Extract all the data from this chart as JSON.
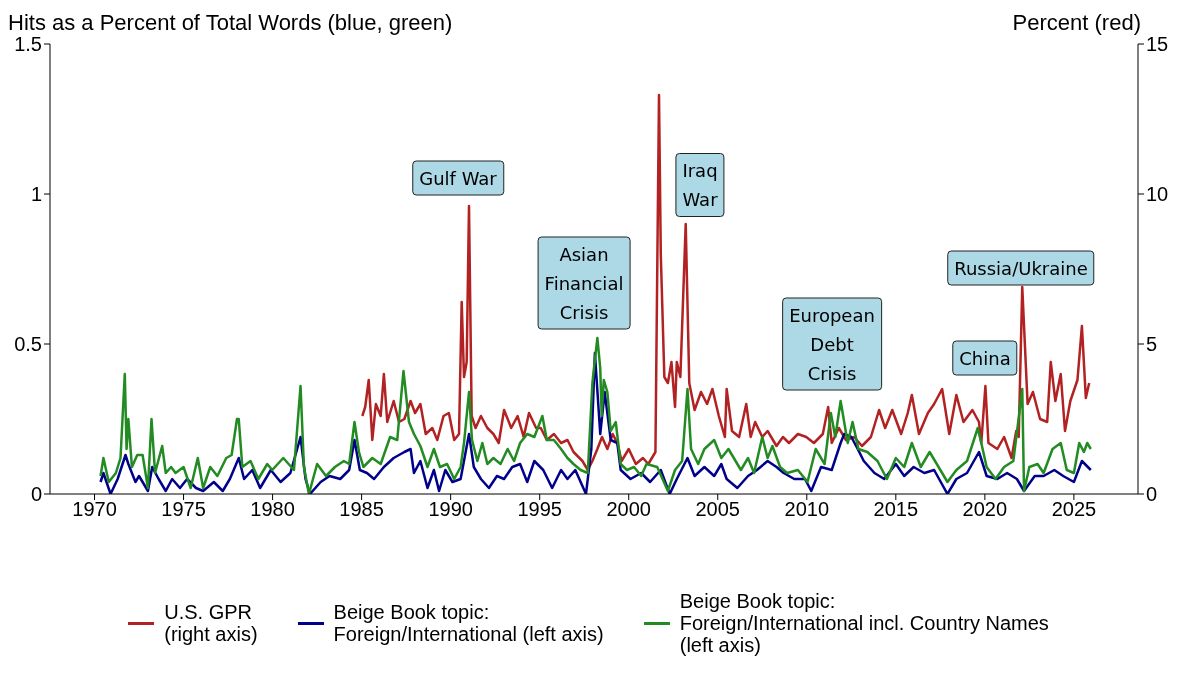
{
  "chart_data": {
    "type": "line",
    "ylabel": "Hits as a Percent of Total Words (blue, green)",
    "y2label": "Percent (red)",
    "xlim": [
      1967.5,
      2028.6
    ],
    "xticks": [
      1970,
      1975,
      1980,
      1985,
      1990,
      1995,
      2000,
      2005,
      2010,
      2015,
      2020,
      2025
    ],
    "ylim": [
      0,
      1.5
    ],
    "yticks": [
      0,
      {
        "value": 0.5,
        "label": "0.5"
      },
      1,
      {
        "value": 1.5,
        "label": "1.5"
      }
    ],
    "y2lim": [
      0,
      15
    ],
    "y2ticks": [
      0,
      5,
      10,
      15
    ],
    "legend": "bottom",
    "series": [
      {
        "name": "U.S. GPR\n(right axis)",
        "color": "#b22222",
        "axis": "y2",
        "x": [
          1985.04,
          1985.2,
          1985.4,
          1985.6,
          1985.8,
          1986.07,
          1986.25,
          1986.44,
          1986.8,
          1987.1,
          1987.4,
          1987.75,
          1988.0,
          1988.3,
          1988.6,
          1988.97,
          1989.25,
          1989.6,
          1989.9,
          1990.2,
          1990.47,
          1990.62,
          1990.75,
          1990.9,
          1991.03,
          1991.18,
          1991.4,
          1991.7,
          1992.06,
          1992.4,
          1992.7,
          1993.0,
          1993.4,
          1993.76,
          1994.1,
          1994.4,
          1994.8,
          1995.06,
          1995.4,
          1995.8,
          1996.2,
          1996.56,
          1996.9,
          1997.4,
          1997.7,
          1997.96,
          1998.24,
          1998.5,
          1998.8,
          1999.1,
          1999.36,
          1999.6,
          2000.0,
          2000.4,
          2000.8,
          2001.1,
          2001.5,
          2001.7,
          2001.8,
          2002.0,
          2002.2,
          2002.4,
          2002.6,
          2002.7,
          2002.9,
          2003.2,
          2003.4,
          2003.7,
          2004.06,
          2004.4,
          2004.7,
          2005.06,
          2005.4,
          2005.5,
          2005.8,
          2006.2,
          2006.6,
          2006.85,
          2007.1,
          2007.5,
          2007.8,
          2008.3,
          2008.66,
          2009.0,
          2009.5,
          2009.97,
          2010.4,
          2010.9,
          2011.2,
          2011.4,
          2011.8,
          2012.2,
          2012.66,
          2013.1,
          2013.6,
          2014.06,
          2014.4,
          2014.8,
          2015.3,
          2015.67,
          2015.9,
          2016.3,
          2016.8,
          2017.15,
          2017.6,
          2018.0,
          2018.4,
          2018.8,
          2019.3,
          2019.67,
          2019.8,
          2020.03,
          2020.2,
          2020.7,
          2021.08,
          2021.5,
          2021.76,
          2021.9,
          2022.1,
          2022.4,
          2022.7,
          2023.1,
          2023.5,
          2023.7,
          2023.96,
          2024.26,
          2024.5,
          2024.8,
          2025.2,
          2025.45,
          2025.67,
          2025.86
        ],
        "values": [
          2.6,
          2.9,
          3.8,
          1.8,
          3.0,
          2.6,
          4.0,
          2.4,
          3.1,
          2.4,
          2.5,
          3.1,
          2.7,
          3.0,
          2.0,
          2.2,
          1.8,
          2.6,
          2.7,
          1.8,
          2.0,
          6.4,
          3.9,
          4.4,
          9.6,
          2.6,
          2.2,
          2.6,
          2.2,
          2.0,
          1.7,
          2.8,
          2.2,
          2.6,
          1.9,
          2.7,
          2.2,
          2.2,
          1.8,
          2.0,
          1.7,
          1.8,
          1.4,
          1.1,
          0.8,
          1.1,
          1.5,
          1.9,
          1.5,
          2.0,
          1.7,
          1.1,
          1.5,
          1.0,
          1.2,
          1.0,
          1.4,
          13.3,
          8.0,
          3.9,
          3.7,
          4.4,
          2.9,
          4.4,
          3.9,
          9.0,
          3.7,
          2.8,
          3.4,
          3.0,
          3.5,
          2.6,
          1.9,
          3.5,
          2.1,
          1.9,
          3.0,
          1.9,
          2.4,
          1.9,
          2.1,
          1.6,
          1.9,
          1.7,
          2.0,
          1.9,
          1.7,
          2.0,
          2.9,
          1.7,
          2.2,
          1.8,
          1.9,
          1.6,
          1.9,
          2.8,
          2.2,
          2.8,
          2.0,
          2.7,
          3.3,
          2.0,
          2.7,
          3.0,
          3.5,
          2.0,
          3.3,
          2.4,
          2.8,
          2.4,
          1.7,
          3.6,
          1.7,
          1.5,
          1.9,
          1.2,
          2.1,
          1.9,
          6.9,
          3.0,
          3.4,
          2.5,
          2.4,
          4.4,
          3.1,
          4.0,
          2.1,
          3.1,
          3.8,
          5.6,
          3.2,
          3.7
        ]
      },
      {
        "name": "Beige Book topic:\nForeign/International (left axis)",
        "color": "#00008b",
        "x": [
          1970.34,
          1970.5,
          1970.9,
          1971.3,
          1971.74,
          1971.9,
          1972.3,
          1972.5,
          1973.0,
          1973.24,
          1973.6,
          1974.0,
          1974.36,
          1974.8,
          1975.2,
          1975.7,
          1976.1,
          1976.7,
          1977.2,
          1977.6,
          1978.1,
          1978.4,
          1978.86,
          1979.3,
          1979.9,
          1980.45,
          1981.0,
          1981.57,
          1981.85,
          1982.1,
          1982.7,
          1983.2,
          1983.8,
          1984.3,
          1984.6,
          1984.9,
          1985.3,
          1985.7,
          1986.25,
          1986.8,
          1987.4,
          1987.75,
          1987.94,
          1988.3,
          1988.7,
          1989.06,
          1989.35,
          1989.7,
          1990.1,
          1990.56,
          1991.03,
          1991.3,
          1991.7,
          1992.15,
          1992.6,
          1993.0,
          1993.46,
          1993.9,
          1994.3,
          1994.7,
          1995.2,
          1995.7,
          1996.2,
          1996.56,
          1997.0,
          1997.6,
          1997.9,
          1998.1,
          1998.4,
          1998.65,
          1998.99,
          1999.36,
          1999.55,
          2000.1,
          2000.7,
          2001.2,
          2001.8,
          2002.3,
          2002.7,
          2003.3,
          2003.7,
          2004.25,
          2004.8,
          2005.2,
          2005.5,
          2006.1,
          2006.7,
          2007.2,
          2007.8,
          2008.3,
          2008.7,
          2009.3,
          2009.9,
          2010.25,
          2010.8,
          2011.4,
          2011.9,
          2012.1,
          2012.5,
          2012.86,
          2013.2,
          2013.8,
          2014.35,
          2015.0,
          2015.47,
          2016.0,
          2016.6,
          2017.15,
          2017.9,
          2018.4,
          2019.0,
          2019.67,
          2020.1,
          2020.7,
          2021.25,
          2021.8,
          2022.2,
          2022.8,
          2023.3,
          2023.9,
          2024.4,
          2025.0,
          2025.45,
          2025.95
        ],
        "values": [
          0.04,
          0.07,
          0.0,
          0.05,
          0.13,
          0.1,
          0.04,
          0.06,
          0.01,
          0.09,
          0.05,
          0.01,
          0.05,
          0.02,
          0.05,
          0.02,
          0.01,
          0.04,
          0.01,
          0.05,
          0.12,
          0.05,
          0.08,
          0.02,
          0.08,
          0.04,
          0.07,
          0.19,
          0.05,
          0.0,
          0.04,
          0.06,
          0.05,
          0.08,
          0.18,
          0.08,
          0.07,
          0.05,
          0.09,
          0.12,
          0.14,
          0.15,
          0.07,
          0.11,
          0.02,
          0.08,
          0.01,
          0.08,
          0.04,
          0.05,
          0.2,
          0.09,
          0.05,
          0.02,
          0.06,
          0.05,
          0.09,
          0.1,
          0.04,
          0.11,
          0.08,
          0.02,
          0.08,
          0.05,
          0.08,
          0.0,
          0.15,
          0.47,
          0.2,
          0.34,
          0.18,
          0.17,
          0.08,
          0.05,
          0.07,
          0.04,
          0.08,
          0.0,
          0.05,
          0.12,
          0.06,
          0.09,
          0.06,
          0.1,
          0.05,
          0.02,
          0.06,
          0.08,
          0.11,
          0.09,
          0.07,
          0.05,
          0.05,
          0.01,
          0.09,
          0.08,
          0.17,
          0.2,
          0.19,
          0.15,
          0.11,
          0.07,
          0.05,
          0.1,
          0.06,
          0.09,
          0.07,
          0.08,
          0.0,
          0.05,
          0.07,
          0.14,
          0.06,
          0.05,
          0.07,
          0.05,
          0.01,
          0.06,
          0.06,
          0.08,
          0.06,
          0.04,
          0.11,
          0.08
        ]
      },
      {
        "name": "Beige Book topic:\nForeign/International incl. Country Names\n(left axis)",
        "color": "#228b22",
        "x": [
          1970.34,
          1970.5,
          1970.8,
          1971.2,
          1971.46,
          1971.7,
          1971.8,
          1971.9,
          1972.1,
          1972.4,
          1972.7,
          1973.0,
          1973.2,
          1973.4,
          1973.8,
          1974.0,
          1974.3,
          1974.55,
          1975.0,
          1975.4,
          1975.8,
          1976.1,
          1976.5,
          1976.9,
          1977.4,
          1977.7,
          1978.0,
          1978.1,
          1978.3,
          1978.76,
          1979.2,
          1979.7,
          1979.98,
          1980.6,
          1981.2,
          1981.57,
          1981.76,
          1982.04,
          1982.5,
          1983.0,
          1983.5,
          1984.0,
          1984.3,
          1984.6,
          1984.85,
          1985.1,
          1985.6,
          1986.07,
          1986.6,
          1987.0,
          1987.35,
          1987.66,
          1987.94,
          1988.3,
          1988.7,
          1989.06,
          1989.4,
          1989.8,
          1990.2,
          1990.56,
          1990.75,
          1991.03,
          1991.2,
          1991.5,
          1991.78,
          1992.06,
          1992.4,
          1992.8,
          1993.2,
          1993.56,
          1993.9,
          1994.3,
          1994.7,
          1995.15,
          1995.4,
          1995.8,
          1996.2,
          1996.56,
          1996.9,
          1997.3,
          1997.7,
          1997.96,
          1998.05,
          1998.24,
          1998.4,
          1998.48,
          1998.6,
          1998.8,
          1998.99,
          1999.27,
          1999.55,
          1999.9,
          2000.3,
          2000.7,
          2001.0,
          2001.6,
          2002.2,
          2002.6,
          2003.0,
          2003.3,
          2003.5,
          2003.9,
          2004.25,
          2004.8,
          2005.2,
          2005.6,
          2005.9,
          2006.3,
          2006.7,
          2007.04,
          2007.5,
          2007.8,
          2008.07,
          2008.5,
          2008.9,
          2009.5,
          2010.04,
          2010.5,
          2011.0,
          2011.35,
          2011.6,
          2011.9,
          2012.3,
          2012.57,
          2012.9,
          2013.4,
          2013.97,
          2014.5,
          2015.0,
          2015.47,
          2015.9,
          2016.4,
          2016.9,
          2017.3,
          2017.9,
          2018.4,
          2019.0,
          2019.6,
          2019.8,
          2020.1,
          2020.6,
          2021.08,
          2021.6,
          2022.1,
          2022.2,
          2022.5,
          2022.96,
          2023.3,
          2023.8,
          2024.26,
          2024.6,
          2025.0,
          2025.3,
          2025.56,
          2025.75,
          2025.95
        ],
        "values": [
          0.06,
          0.12,
          0.04,
          0.07,
          0.12,
          0.4,
          0.15,
          0.25,
          0.09,
          0.13,
          0.13,
          0.02,
          0.25,
          0.07,
          0.16,
          0.07,
          0.09,
          0.07,
          0.09,
          0.02,
          0.12,
          0.02,
          0.09,
          0.06,
          0.12,
          0.13,
          0.25,
          0.25,
          0.09,
          0.11,
          0.05,
          0.1,
          0.08,
          0.12,
          0.08,
          0.36,
          0.09,
          0.0,
          0.1,
          0.06,
          0.09,
          0.11,
          0.1,
          0.24,
          0.14,
          0.09,
          0.12,
          0.1,
          0.19,
          0.18,
          0.41,
          0.24,
          0.2,
          0.16,
          0.09,
          0.15,
          0.09,
          0.1,
          0.05,
          0.09,
          0.17,
          0.34,
          0.18,
          0.11,
          0.17,
          0.1,
          0.12,
          0.1,
          0.15,
          0.11,
          0.17,
          0.2,
          0.19,
          0.26,
          0.18,
          0.18,
          0.15,
          0.12,
          0.1,
          0.08,
          0.07,
          0.37,
          0.42,
          0.52,
          0.42,
          0.26,
          0.38,
          0.34,
          0.21,
          0.24,
          0.1,
          0.08,
          0.09,
          0.06,
          0.1,
          0.09,
          0.01,
          0.08,
          0.11,
          0.35,
          0.15,
          0.1,
          0.15,
          0.18,
          0.12,
          0.15,
          0.12,
          0.08,
          0.12,
          0.07,
          0.19,
          0.12,
          0.16,
          0.09,
          0.07,
          0.08,
          0.04,
          0.15,
          0.1,
          0.27,
          0.19,
          0.31,
          0.17,
          0.24,
          0.15,
          0.14,
          0.11,
          0.05,
          0.12,
          0.09,
          0.17,
          0.09,
          0.14,
          0.1,
          0.04,
          0.08,
          0.11,
          0.22,
          0.17,
          0.09,
          0.05,
          0.09,
          0.11,
          0.35,
          0.01,
          0.09,
          0.1,
          0.07,
          0.15,
          0.17,
          0.08,
          0.07,
          0.17,
          0.14,
          0.17,
          0.15
        ]
      }
    ],
    "annotations": [
      "Gulf War",
      "Asian\nFinancial\nCrisis",
      "Iraq\nWar",
      "European\nDebt\nCrisis",
      "China",
      "Russia/Ukraine"
    ]
  }
}
